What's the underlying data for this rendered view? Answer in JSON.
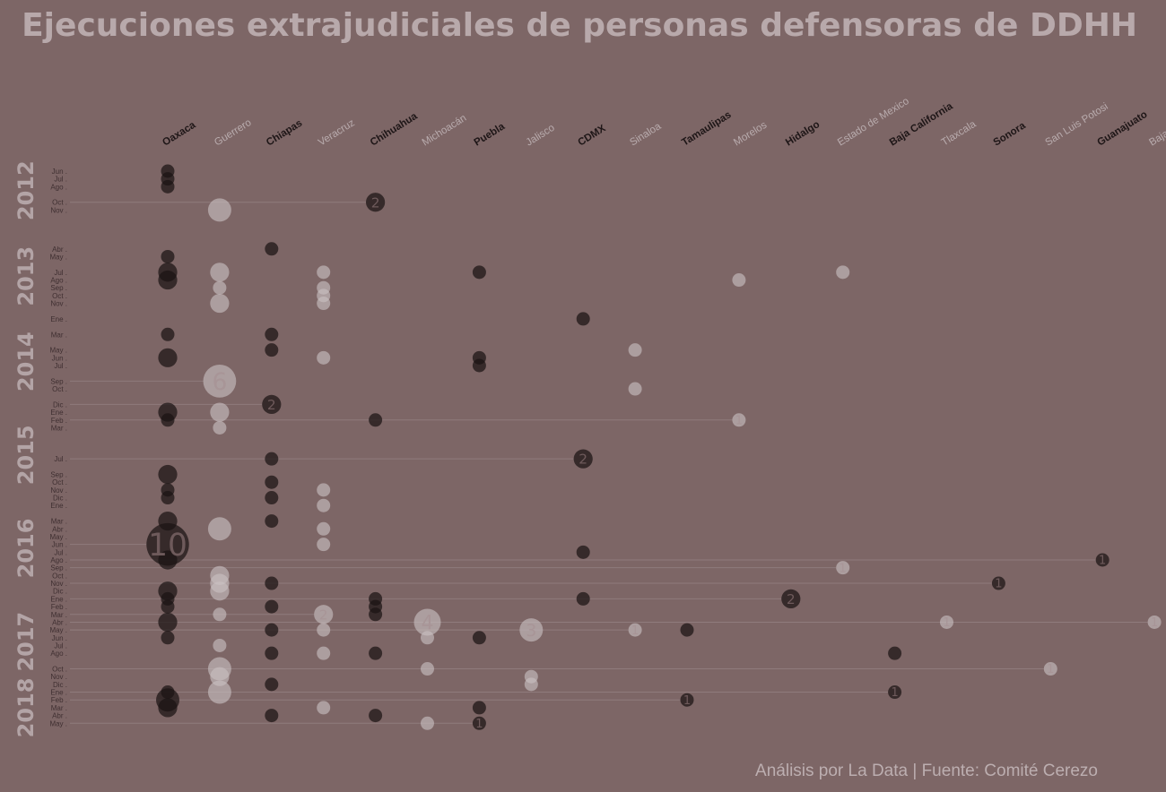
{
  "colors": {
    "background": "#7d6666",
    "dark_bubble": "#1b1314",
    "light_bubble": "#c9c0c1",
    "title": "#b8a9ab",
    "dark_label": "#1e1617",
    "light_label": "#b9acae"
  },
  "chart_data": {
    "type": "scatter",
    "title": "Ejecuciones extrajudiciales de personas defensoras de DDHH",
    "caption": "Análisis por La Data | Fuente: Comité Cerezo",
    "states": [
      "Oaxaca",
      "Guerrero",
      "Chiapas",
      "Veracruz",
      "Chihuahua",
      "Michoacán",
      "Puebla",
      "Jalisco",
      "CDMX",
      "Sinaloa",
      "Tamaulipas",
      "Morelos",
      "Hidalgo",
      "Estado de Mexico",
      "Baja California",
      "Tlaxcala",
      "Sonora",
      "San Luis Potosi",
      "Guanajuato",
      "Baja California Sur"
    ],
    "years": [
      {
        "label": "2012",
        "start": "Jun",
        "end": "Nov"
      },
      {
        "label": "2013",
        "start": "Abr",
        "end": "Nov"
      },
      {
        "label": "2014",
        "start": "Ene",
        "end": "Dic"
      },
      {
        "label": "2015",
        "start": "Ene",
        "end": "Dic"
      },
      {
        "label": "2016",
        "start": "Ene",
        "end": "Dic"
      },
      {
        "label": "2017",
        "start": "Ene",
        "end": "Dic"
      },
      {
        "label": "2018",
        "start": "Ene",
        "end": "May"
      }
    ],
    "months": [
      {
        "label": "Jun",
        "date": "2012-06"
      },
      {
        "label": "Jul",
        "date": "2012-07"
      },
      {
        "label": "Ago",
        "date": "2012-08"
      },
      {
        "label": "Oct",
        "date": "2012-10"
      },
      {
        "label": "Nov",
        "date": "2012-11"
      },
      {
        "label": "Abr",
        "date": "2013-04"
      },
      {
        "label": "May",
        "date": "2013-05"
      },
      {
        "label": "Jul",
        "date": "2013-07"
      },
      {
        "label": "Ago",
        "date": "2013-08"
      },
      {
        "label": "Sep",
        "date": "2013-09"
      },
      {
        "label": "Oct",
        "date": "2013-10"
      },
      {
        "label": "Nov",
        "date": "2013-11"
      },
      {
        "label": "Ene",
        "date": "2014-01"
      },
      {
        "label": "Mar",
        "date": "2014-03"
      },
      {
        "label": "May",
        "date": "2014-05"
      },
      {
        "label": "Jun",
        "date": "2014-06"
      },
      {
        "label": "Jul",
        "date": "2014-07"
      },
      {
        "label": "Sep",
        "date": "2014-09"
      },
      {
        "label": "Oct",
        "date": "2014-10"
      },
      {
        "label": "Dic",
        "date": "2014-12"
      },
      {
        "label": "Ene",
        "date": "2015-01"
      },
      {
        "label": "Feb",
        "date": "2015-02"
      },
      {
        "label": "Mar",
        "date": "2015-03"
      },
      {
        "label": "Jul",
        "date": "2015-07"
      },
      {
        "label": "Sep",
        "date": "2015-09"
      },
      {
        "label": "Oct",
        "date": "2015-10"
      },
      {
        "label": "Nov",
        "date": "2015-11"
      },
      {
        "label": "Dic",
        "date": "2015-12"
      },
      {
        "label": "Ene",
        "date": "2016-01"
      },
      {
        "label": "Mar",
        "date": "2016-03"
      },
      {
        "label": "Abr",
        "date": "2016-04"
      },
      {
        "label": "May",
        "date": "2016-05"
      },
      {
        "label": "Jun",
        "date": "2016-06"
      },
      {
        "label": "Jul",
        "date": "2016-07"
      },
      {
        "label": "Ago",
        "date": "2016-08"
      },
      {
        "label": "Sep",
        "date": "2016-09"
      },
      {
        "label": "Oct",
        "date": "2016-10"
      },
      {
        "label": "Nov",
        "date": "2016-11"
      },
      {
        "label": "Dic",
        "date": "2016-12"
      },
      {
        "label": "Ene",
        "date": "2017-01"
      },
      {
        "label": "Feb",
        "date": "2017-02"
      },
      {
        "label": "Mar",
        "date": "2017-03"
      },
      {
        "label": "Abr",
        "date": "2017-04"
      },
      {
        "label": "May",
        "date": "2017-05"
      },
      {
        "label": "Jun",
        "date": "2017-06"
      },
      {
        "label": "Jul",
        "date": "2017-07"
      },
      {
        "label": "Ago",
        "date": "2017-08"
      },
      {
        "label": "Oct",
        "date": "2017-10"
      },
      {
        "label": "Nov",
        "date": "2017-11"
      },
      {
        "label": "Dic",
        "date": "2017-12"
      },
      {
        "label": "Ene",
        "date": "2018-01"
      },
      {
        "label": "Feb",
        "date": "2018-02"
      },
      {
        "label": "Mar",
        "date": "2018-03"
      },
      {
        "label": "Abr",
        "date": "2018-04"
      },
      {
        "label": "May",
        "date": "2018-05"
      }
    ],
    "points": [
      {
        "state": "Oaxaca",
        "date": "2012-06",
        "count": 1
      },
      {
        "state": "Oaxaca",
        "date": "2012-07",
        "count": 1
      },
      {
        "state": "Oaxaca",
        "date": "2012-08",
        "count": 1
      },
      {
        "state": "Chihuahua",
        "date": "2012-10",
        "count": 2,
        "labeled": true
      },
      {
        "state": "Guerrero",
        "date": "2012-11",
        "count": 3
      },
      {
        "state": "Chiapas",
        "date": "2013-04",
        "count": 1
      },
      {
        "state": "Oaxaca",
        "date": "2013-05",
        "count": 1
      },
      {
        "state": "Oaxaca",
        "date": "2013-07",
        "count": 2
      },
      {
        "state": "Guerrero",
        "date": "2013-07",
        "count": 2
      },
      {
        "state": "Veracruz",
        "date": "2013-07",
        "count": 1
      },
      {
        "state": "Puebla",
        "date": "2013-07",
        "count": 1
      },
      {
        "state": "Estado de Mexico",
        "date": "2013-07",
        "count": 1
      },
      {
        "state": "Oaxaca",
        "date": "2013-08",
        "count": 2
      },
      {
        "state": "Morelos",
        "date": "2013-08",
        "count": 1
      },
      {
        "state": "Guerrero",
        "date": "2013-09",
        "count": 1
      },
      {
        "state": "Veracruz",
        "date": "2013-09",
        "count": 1
      },
      {
        "state": "Veracruz",
        "date": "2013-10",
        "count": 1
      },
      {
        "state": "Guerrero",
        "date": "2013-11",
        "count": 2
      },
      {
        "state": "Veracruz",
        "date": "2013-11",
        "count": 1
      },
      {
        "state": "CDMX",
        "date": "2014-01",
        "count": 1
      },
      {
        "state": "Oaxaca",
        "date": "2014-03",
        "count": 1
      },
      {
        "state": "Chiapas",
        "date": "2014-03",
        "count": 1
      },
      {
        "state": "Chiapas",
        "date": "2014-05",
        "count": 1
      },
      {
        "state": "Sinaloa",
        "date": "2014-05",
        "count": 1
      },
      {
        "state": "Oaxaca",
        "date": "2014-06",
        "count": 2
      },
      {
        "state": "Veracruz",
        "date": "2014-06",
        "count": 1
      },
      {
        "state": "Puebla",
        "date": "2014-06",
        "count": 1
      },
      {
        "state": "Puebla",
        "date": "2014-07",
        "count": 1
      },
      {
        "state": "Guerrero",
        "date": "2014-09",
        "count": 6,
        "labeled": true
      },
      {
        "state": "Sinaloa",
        "date": "2014-10",
        "count": 1
      },
      {
        "state": "Chiapas",
        "date": "2014-12",
        "count": 2,
        "labeled": true
      },
      {
        "state": "Oaxaca",
        "date": "2015-01",
        "count": 2
      },
      {
        "state": "Guerrero",
        "date": "2015-01",
        "count": 2
      },
      {
        "state": "Oaxaca",
        "date": "2015-02",
        "count": 1
      },
      {
        "state": "Chihuahua",
        "date": "2015-02",
        "count": 1
      },
      {
        "state": "Morelos",
        "date": "2015-02",
        "count": 1,
        "labeled": true
      },
      {
        "state": "Guerrero",
        "date": "2015-03",
        "count": 1
      },
      {
        "state": "Chiapas",
        "date": "2015-07",
        "count": 1
      },
      {
        "state": "CDMX",
        "date": "2015-07",
        "count": 2,
        "labeled": true
      },
      {
        "state": "Oaxaca",
        "date": "2015-09",
        "count": 2
      },
      {
        "state": "Chiapas",
        "date": "2015-10",
        "count": 1
      },
      {
        "state": "Oaxaca",
        "date": "2015-11",
        "count": 1
      },
      {
        "state": "Veracruz",
        "date": "2015-11",
        "count": 1
      },
      {
        "state": "Oaxaca",
        "date": "2015-12",
        "count": 1
      },
      {
        "state": "Chiapas",
        "date": "2015-12",
        "count": 1
      },
      {
        "state": "Veracruz",
        "date": "2016-01",
        "count": 1
      },
      {
        "state": "Oaxaca",
        "date": "2016-03",
        "count": 2
      },
      {
        "state": "Chiapas",
        "date": "2016-03",
        "count": 1
      },
      {
        "state": "Guerrero",
        "date": "2016-04",
        "count": 3
      },
      {
        "state": "Veracruz",
        "date": "2016-04",
        "count": 1
      },
      {
        "state": "Oaxaca",
        "date": "2016-06",
        "count": 10,
        "labeled": true
      },
      {
        "state": "Veracruz",
        "date": "2016-06",
        "count": 1
      },
      {
        "state": "CDMX",
        "date": "2016-07",
        "count": 1
      },
      {
        "state": "Oaxaca",
        "date": "2016-08",
        "count": 2
      },
      {
        "state": "Guanajuato",
        "date": "2016-08",
        "count": 1,
        "labeled": true
      },
      {
        "state": "Estado de Mexico",
        "date": "2016-09",
        "count": 1,
        "labeled": true
      },
      {
        "state": "Guerrero",
        "date": "2016-10",
        "count": 2
      },
      {
        "state": "Guerrero",
        "date": "2016-11",
        "count": 2
      },
      {
        "state": "Chiapas",
        "date": "2016-11",
        "count": 1
      },
      {
        "state": "Sonora",
        "date": "2016-11",
        "count": 1,
        "labeled": true
      },
      {
        "state": "Oaxaca",
        "date": "2016-12",
        "count": 2
      },
      {
        "state": "Guerrero",
        "date": "2016-12",
        "count": 2
      },
      {
        "state": "Oaxaca",
        "date": "2017-01",
        "count": 1
      },
      {
        "state": "Chihuahua",
        "date": "2017-01",
        "count": 1
      },
      {
        "state": "CDMX",
        "date": "2017-01",
        "count": 1
      },
      {
        "state": "Hidalgo",
        "date": "2017-01",
        "count": 2,
        "labeled": true
      },
      {
        "state": "Oaxaca",
        "date": "2017-02",
        "count": 1
      },
      {
        "state": "Chiapas",
        "date": "2017-02",
        "count": 1
      },
      {
        "state": "Chihuahua",
        "date": "2017-02",
        "count": 1
      },
      {
        "state": "Guerrero",
        "date": "2017-03",
        "count": 1
      },
      {
        "state": "Veracruz",
        "date": "2017-03",
        "count": 2,
        "labeled": true
      },
      {
        "state": "Chihuahua",
        "date": "2017-03",
        "count": 1
      },
      {
        "state": "Oaxaca",
        "date": "2017-04",
        "count": 2
      },
      {
        "state": "Michoacán",
        "date": "2017-04",
        "count": 4,
        "labeled": true
      },
      {
        "state": "Tlaxcala",
        "date": "2017-04",
        "count": 1,
        "labeled": true
      },
      {
        "state": "Baja California Sur",
        "date": "2017-04",
        "count": 1,
        "labeled": true
      },
      {
        "state": "Chiapas",
        "date": "2017-05",
        "count": 1
      },
      {
        "state": "Veracruz",
        "date": "2017-05",
        "count": 1
      },
      {
        "state": "Jalisco",
        "date": "2017-05",
        "count": 3,
        "labeled": true
      },
      {
        "state": "Sinaloa",
        "date": "2017-05",
        "count": 1,
        "labeled": true
      },
      {
        "state": "Tamaulipas",
        "date": "2017-05",
        "count": 1
      },
      {
        "state": "Oaxaca",
        "date": "2017-06",
        "count": 1
      },
      {
        "state": "Michoacán",
        "date": "2017-06",
        "count": 1
      },
      {
        "state": "Puebla",
        "date": "2017-06",
        "count": 1
      },
      {
        "state": "Guerrero",
        "date": "2017-07",
        "count": 1
      },
      {
        "state": "Chiapas",
        "date": "2017-08",
        "count": 1
      },
      {
        "state": "Veracruz",
        "date": "2017-08",
        "count": 1
      },
      {
        "state": "Chihuahua",
        "date": "2017-08",
        "count": 1
      },
      {
        "state": "Baja California",
        "date": "2017-08",
        "count": 1
      },
      {
        "state": "Guerrero",
        "date": "2017-10",
        "count": 3
      },
      {
        "state": "Michoacán",
        "date": "2017-10",
        "count": 1
      },
      {
        "state": "San Luis Potosi",
        "date": "2017-10",
        "count": 1,
        "labeled": true
      },
      {
        "state": "Guerrero",
        "date": "2017-11",
        "count": 2
      },
      {
        "state": "Jalisco",
        "date": "2017-11",
        "count": 1
      },
      {
        "state": "Chiapas",
        "date": "2017-12",
        "count": 1
      },
      {
        "state": "Jalisco",
        "date": "2017-12",
        "count": 1
      },
      {
        "state": "Guerrero",
        "date": "2018-01",
        "count": 3
      },
      {
        "state": "Oaxaca",
        "date": "2018-01",
        "count": 1
      },
      {
        "state": "Baja California",
        "date": "2018-01",
        "count": 1,
        "labeled": true
      },
      {
        "state": "Oaxaca",
        "date": "2018-02",
        "count": 3
      },
      {
        "state": "Tamaulipas",
        "date": "2018-02",
        "count": 1,
        "labeled": true
      },
      {
        "state": "Oaxaca",
        "date": "2018-03",
        "count": 2
      },
      {
        "state": "Veracruz",
        "date": "2018-03",
        "count": 1
      },
      {
        "state": "Puebla",
        "date": "2018-03",
        "count": 1
      },
      {
        "state": "Chiapas",
        "date": "2018-04",
        "count": 1
      },
      {
        "state": "Chihuahua",
        "date": "2018-04",
        "count": 1
      },
      {
        "state": "Michoacán",
        "date": "2018-05",
        "count": 1
      },
      {
        "state": "Puebla",
        "date": "2018-05",
        "count": 1,
        "labeled": true
      }
    ]
  }
}
